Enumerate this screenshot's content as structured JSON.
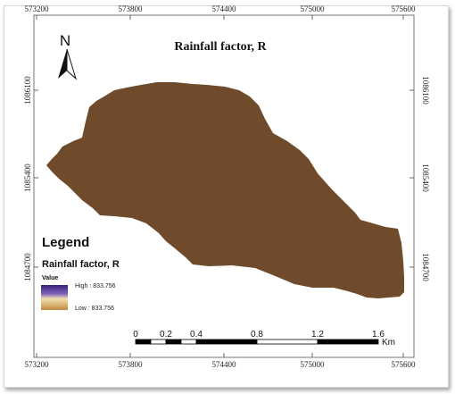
{
  "map": {
    "title": "Rainfall factor, R",
    "fill_color": "#6f4a2b",
    "north": {
      "label": "N"
    },
    "grid_ticks": {
      "x_top": [
        "573200",
        "573800",
        "574400",
        "575000",
        "575600"
      ],
      "x_bottom": [
        "573200",
        "573800",
        "574400",
        "575000",
        "575600"
      ],
      "y_left": [
        "1086100",
        "1085400",
        "1084700"
      ],
      "y_right": [
        "1086100",
        "1085400",
        "1084700"
      ]
    },
    "legend": {
      "title": "Legend",
      "layer": "Rainfall factor, R",
      "field": "Value",
      "high_label": "High : 833.756",
      "low_label": "Low : 833.756",
      "ramp_colors": [
        "#3a1f7a",
        "#7d63b8",
        "#f2e0b0",
        "#c08a3c"
      ]
    },
    "scale_bar": {
      "labels": [
        "0",
        "0.2",
        "0.4",
        "0.8",
        "1.2",
        "1.6"
      ],
      "unit": "Km"
    }
  }
}
